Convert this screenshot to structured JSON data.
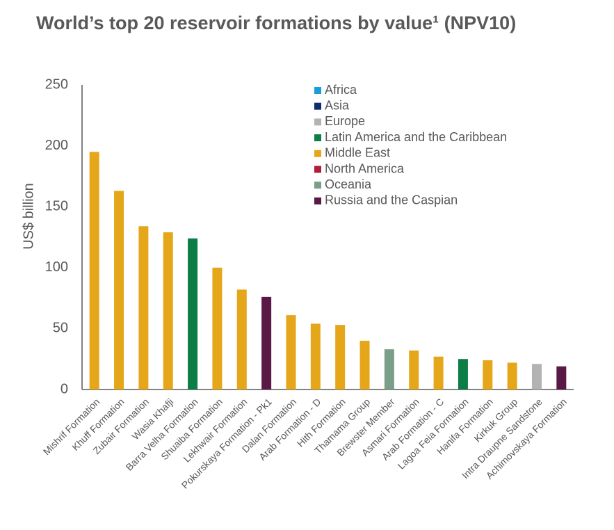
{
  "chart_data": {
    "type": "bar",
    "title": "World’s top 20 reservoir formations by value¹ (NPV10)",
    "y_label": "US$ billion",
    "categories": [
      "Mishrif Formation",
      "Khuff Formation",
      "Zubair Formation",
      "Wasia Khafji",
      "Barra Velha Formation",
      "Shuaiba Formation",
      "Lekhwair Formation",
      "Pokurskaya Formation - Pk1",
      "Dalan Formation",
      "Arab Formation - D",
      "Hith Formation",
      "Thamama Group",
      "Brewster Member",
      "Asmari Formation",
      "Arab Formation - C",
      "Lagoa Feia Formation",
      "Hanifa Formation",
      "Kirkuk Group",
      "Intra Draupne Sandstone",
      "Achimovskaya Formation"
    ],
    "values": [
      195,
      163,
      134,
      129,
      124,
      100,
      82,
      76,
      61,
      54,
      53,
      40,
      33,
      32,
      27,
      25,
      24,
      22,
      21,
      19
    ],
    "colors": [
      "#e6a619",
      "#e6a619",
      "#e6a619",
      "#e6a619",
      "#0b7d45",
      "#e6a619",
      "#e6a619",
      "#5a1846",
      "#e6a619",
      "#e6a619",
      "#e6a619",
      "#e6a619",
      "#7a9e87",
      "#e6a619",
      "#e6a619",
      "#0b7d45",
      "#e6a619",
      "#e6a619",
      "#b3b3b3",
      "#5a1846"
    ],
    "legend": [
      {
        "name": "Africa",
        "color": "#1a9ed9"
      },
      {
        "name": "Asia",
        "color": "#0f2d6b"
      },
      {
        "name": "Europe",
        "color": "#b3b3b3"
      },
      {
        "name": "Latin America and the Caribbean",
        "color": "#0b7d45"
      },
      {
        "name": "Middle East",
        "color": "#e6a619"
      },
      {
        "name": "North America",
        "color": "#b01e3c"
      },
      {
        "name": "Oceania",
        "color": "#7a9e87"
      },
      {
        "name": "Russia and the Caspian",
        "color": "#5a1846"
      }
    ],
    "ylim": [
      0,
      250
    ],
    "yticks": [
      0,
      50,
      100,
      150,
      200,
      250
    ],
    "grid": false
  }
}
